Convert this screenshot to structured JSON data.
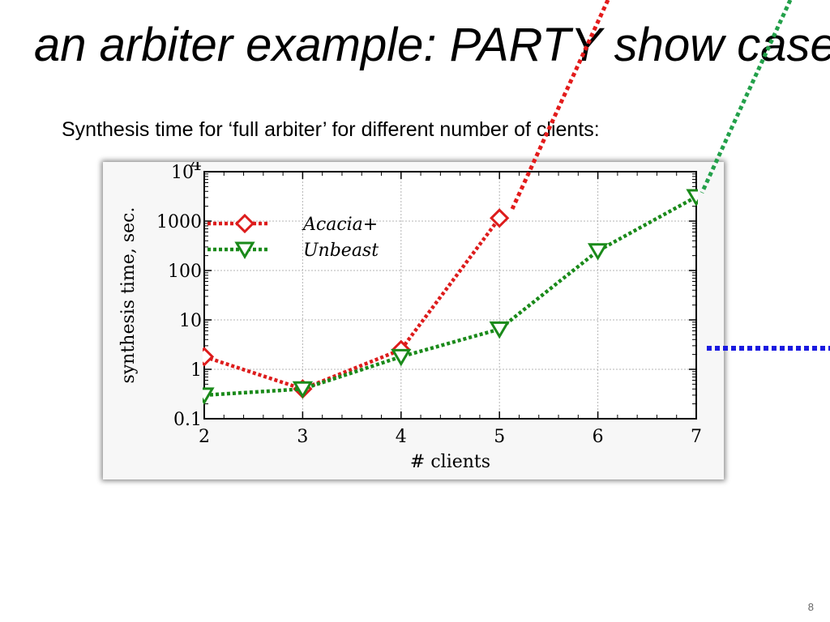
{
  "slide": {
    "title": "an arbiter example: PARTY show case",
    "subtitle": "Synthesis time for ‘full arbiter’ for different number of clients:",
    "page_number": "8"
  },
  "colors": {
    "acacia": "#dd1c1c",
    "unbeast": "#1a8a1a",
    "overlay_red": "#e31b1b",
    "overlay_green": "#23a04a",
    "overlay_blue": "#1a1ae0"
  },
  "chart_data": {
    "type": "line",
    "xlabel": "# clients",
    "ylabel": "synthesis time, sec.",
    "x": [
      2,
      3,
      4,
      5,
      6,
      7
    ],
    "xlim": [
      2,
      7
    ],
    "ylim": [
      0.1,
      10000
    ],
    "yscale": "log",
    "x_ticks": [
      "2",
      "3",
      "4",
      "5",
      "6",
      "7"
    ],
    "y_ticks": [
      {
        "value": 0.1,
        "label": "0.1"
      },
      {
        "value": 1,
        "label": "1"
      },
      {
        "value": 10,
        "label": "10"
      },
      {
        "value": 100,
        "label": "100"
      },
      {
        "value": 1000,
        "label": "1000"
      },
      {
        "value": 10000,
        "label": "10",
        "exponent": "4"
      }
    ],
    "grid": true,
    "legend_position": "top-left",
    "series": [
      {
        "name": "Acacia+",
        "marker": "diamond",
        "color": "#dd1c1c",
        "points": [
          [
            2,
            1.8
          ],
          [
            3,
            0.4
          ],
          [
            4,
            2.5
          ],
          [
            5,
            1150
          ]
        ]
      },
      {
        "name": "Unbeast",
        "marker": "triangle-down",
        "color": "#1a8a1a",
        "points": [
          [
            2,
            0.3
          ],
          [
            3,
            0.4
          ],
          [
            4,
            1.8
          ],
          [
            5,
            6.5
          ],
          [
            6,
            250
          ],
          [
            7,
            3100
          ]
        ]
      }
    ]
  }
}
